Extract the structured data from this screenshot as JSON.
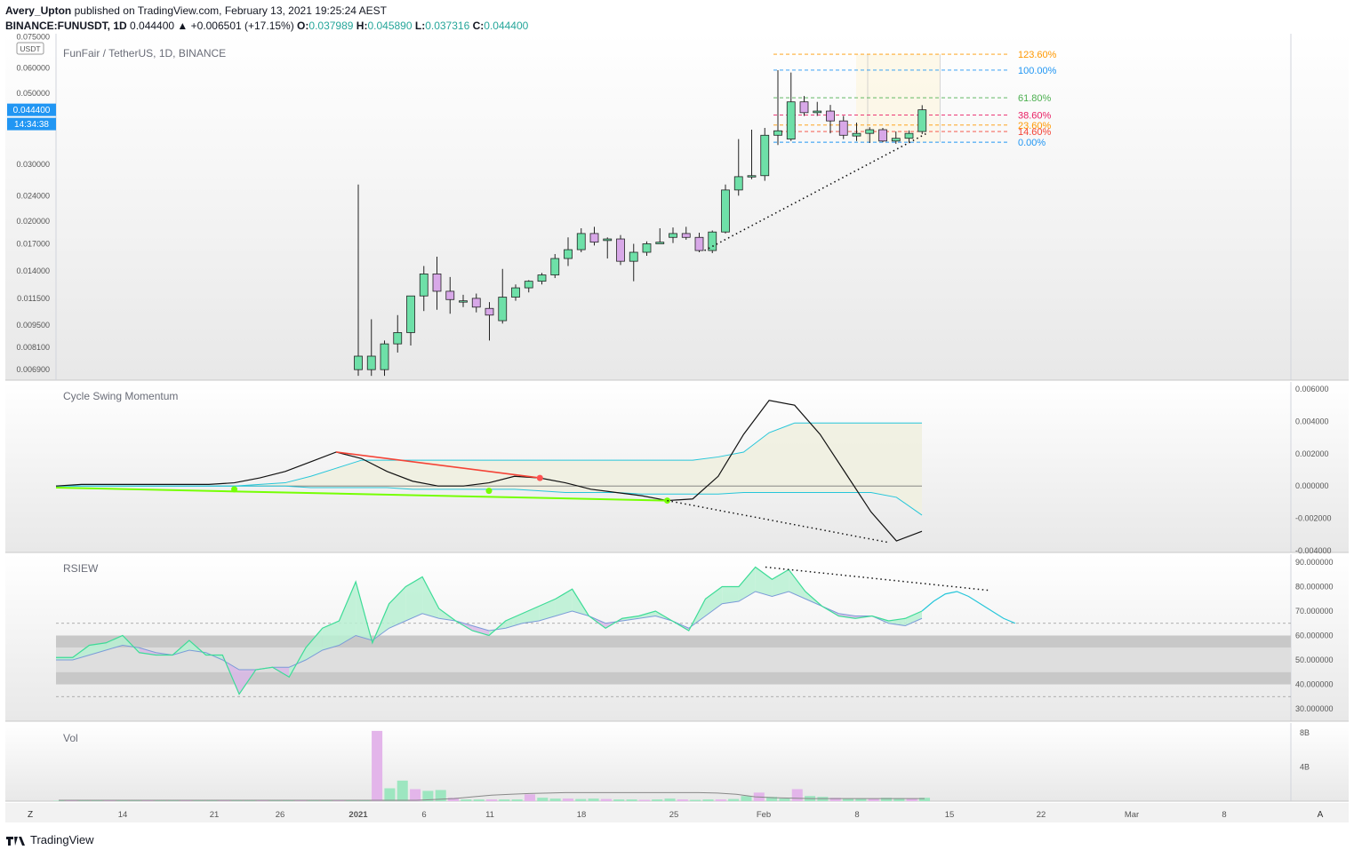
{
  "header": {
    "publisher": "Avery_Upton",
    "published_text": "published on TradingView.com, February 13, 2021 19:25:24 AEST",
    "symbol": "BINANCE:FUNUSDT, 1D",
    "change": "0.044400 ▲ +0.006501 (+17.15%)",
    "o_label": "O:",
    "o_val": "0.037989",
    "h_label": "H:",
    "h_val": "0.045890",
    "l_label": "L:",
    "l_val": "0.037316",
    "c_label": "C:",
    "c_val": "0.044400"
  },
  "footer": {
    "brand": "TradingView"
  },
  "colors": {
    "up": "#6ee0a8",
    "down": "#d8a8e8",
    "accent": "#2962ff"
  },
  "chart_data": [
    {
      "type": "candlestick",
      "title": "FunFair / TetherUS, 1D, BINANCE",
      "currency_label": "USDT",
      "y_ticks": [
        "0.075000",
        "0.060000",
        "0.050000",
        "0.030000",
        "0.024000",
        "0.020000",
        "0.017000",
        "0.014000",
        "0.011500",
        "0.009500",
        "0.008100",
        "0.006900"
      ],
      "price_badge": "0.044400",
      "countdown_badge": "14:34:38",
      "candles": [
        {
          "o": 0.0069,
          "h": 0.026,
          "l": 0.0066,
          "c": 0.0076
        },
        {
          "o": 0.0069,
          "h": 0.0099,
          "l": 0.0066,
          "c": 0.0076
        },
        {
          "o": 0.0069,
          "h": 0.0085,
          "l": 0.0066,
          "c": 0.0083
        },
        {
          "o": 0.0083,
          "h": 0.0102,
          "l": 0.0078,
          "c": 0.009
        },
        {
          "o": 0.009,
          "h": 0.0112,
          "l": 0.0082,
          "c": 0.0117
        },
        {
          "o": 0.0117,
          "h": 0.0145,
          "l": 0.0105,
          "c": 0.0137
        },
        {
          "o": 0.0137,
          "h": 0.0155,
          "l": 0.0106,
          "c": 0.0121
        },
        {
          "o": 0.0121,
          "h": 0.0134,
          "l": 0.0103,
          "c": 0.0114
        },
        {
          "o": 0.0113,
          "h": 0.0118,
          "l": 0.0108,
          "c": 0.0113
        },
        {
          "o": 0.0115,
          "h": 0.0119,
          "l": 0.0104,
          "c": 0.0108
        },
        {
          "o": 0.0107,
          "h": 0.0112,
          "l": 0.0085,
          "c": 0.0102
        },
        {
          "o": 0.0098,
          "h": 0.0142,
          "l": 0.0096,
          "c": 0.0116
        },
        {
          "o": 0.0116,
          "h": 0.0127,
          "l": 0.0113,
          "c": 0.0124
        },
        {
          "o": 0.0124,
          "h": 0.0131,
          "l": 0.012,
          "c": 0.013
        },
        {
          "o": 0.013,
          "h": 0.0138,
          "l": 0.0127,
          "c": 0.0136
        },
        {
          "o": 0.0136,
          "h": 0.0158,
          "l": 0.0133,
          "c": 0.0153
        },
        {
          "o": 0.0153,
          "h": 0.0178,
          "l": 0.0145,
          "c": 0.0163
        },
        {
          "o": 0.0163,
          "h": 0.019,
          "l": 0.016,
          "c": 0.0183
        },
        {
          "o": 0.0183,
          "h": 0.0192,
          "l": 0.0168,
          "c": 0.0172
        },
        {
          "o": 0.0174,
          "h": 0.0178,
          "l": 0.0153,
          "c": 0.0176
        },
        {
          "o": 0.0176,
          "h": 0.0181,
          "l": 0.0146,
          "c": 0.015
        },
        {
          "o": 0.015,
          "h": 0.017,
          "l": 0.013,
          "c": 0.016
        },
        {
          "o": 0.016,
          "h": 0.0173,
          "l": 0.0156,
          "c": 0.017
        },
        {
          "o": 0.017,
          "h": 0.019,
          "l": 0.017,
          "c": 0.0172
        },
        {
          "o": 0.0178,
          "h": 0.0191,
          "l": 0.0171,
          "c": 0.0183
        },
        {
          "o": 0.0183,
          "h": 0.0192,
          "l": 0.0175,
          "c": 0.0178
        },
        {
          "o": 0.0178,
          "h": 0.0184,
          "l": 0.016,
          "c": 0.0162
        },
        {
          "o": 0.0162,
          "h": 0.0187,
          "l": 0.0159,
          "c": 0.0185
        },
        {
          "o": 0.0185,
          "h": 0.026,
          "l": 0.0183,
          "c": 0.025
        },
        {
          "o": 0.025,
          "h": 0.036,
          "l": 0.024,
          "c": 0.0275
        },
        {
          "o": 0.0275,
          "h": 0.0385,
          "l": 0.027,
          "c": 0.0277
        },
        {
          "o": 0.0277,
          "h": 0.039,
          "l": 0.0267,
          "c": 0.037
        },
        {
          "o": 0.037,
          "h": 0.059,
          "l": 0.0345,
          "c": 0.0382
        },
        {
          "o": 0.036,
          "h": 0.058,
          "l": 0.0355,
          "c": 0.047
        },
        {
          "o": 0.047,
          "h": 0.049,
          "l": 0.0425,
          "c": 0.0435
        },
        {
          "o": 0.0435,
          "h": 0.047,
          "l": 0.0425,
          "c": 0.044
        },
        {
          "o": 0.044,
          "h": 0.046,
          "l": 0.0375,
          "c": 0.041
        },
        {
          "o": 0.041,
          "h": 0.0425,
          "l": 0.036,
          "c": 0.037
        },
        {
          "o": 0.0368,
          "h": 0.0405,
          "l": 0.0355,
          "c": 0.0375
        },
        {
          "o": 0.0375,
          "h": 0.0392,
          "l": 0.035,
          "c": 0.0385
        },
        {
          "o": 0.0385,
          "h": 0.039,
          "l": 0.0352,
          "c": 0.0355
        },
        {
          "o": 0.0355,
          "h": 0.038,
          "l": 0.0348,
          "c": 0.0362
        },
        {
          "o": 0.0362,
          "h": 0.0383,
          "l": 0.0352,
          "c": 0.0375
        },
        {
          "o": 0.038,
          "h": 0.0459,
          "l": 0.0373,
          "c": 0.0444
        }
      ],
      "fib_levels": [
        {
          "label": "123.60%",
          "value": 0.0661,
          "color": "#ff9800"
        },
        {
          "label": "100.00%",
          "value": 0.059,
          "color": "#2196f3"
        },
        {
          "label": "61.80%",
          "value": 0.0484,
          "color": "#4caf50"
        },
        {
          "label": "38.60%",
          "value": 0.0428,
          "color": "#e91e63"
        },
        {
          "label": "23.60%",
          "value": 0.0398,
          "color": "#ff9800"
        },
        {
          "label": "14.60%",
          "value": 0.038,
          "color": "#f44336"
        },
        {
          "label": "0.00%",
          "value": 0.0352,
          "color": "#2196f3"
        }
      ]
    },
    {
      "type": "line",
      "title": "Cycle Swing Momentum",
      "y_ticks": [
        "0.006000",
        "0.004000",
        "0.002000",
        "0.000000",
        "-0.002000",
        "-0.004000"
      ],
      "ylim": [
        -0.004,
        0.006
      ],
      "momentum": [
        0,
        0.0001,
        0.0001,
        0.0001,
        0.0001,
        0.0001,
        0.0001,
        0.0002,
        0.0005,
        0.0009,
        0.0015,
        0.0021,
        0.0017,
        0.0009,
        0.0003,
        0,
        0,
        0.0002,
        0.0006,
        0.0005,
        0.0002,
        -0.0002,
        -0.0004,
        -0.0006,
        -0.0009,
        -0.0008,
        0.0006,
        0.0032,
        0.0053,
        0.005,
        0.0032,
        0.0008,
        -0.0016,
        -0.0034,
        -0.0028
      ],
      "signal": [
        0,
        0,
        0,
        0,
        0,
        0,
        0,
        0,
        0.0001,
        0.0002,
        0.0006,
        0.0011,
        0.0016,
        0.0016,
        0.0016,
        0.0016,
        0.0016,
        0.0016,
        0.0016,
        0.0016,
        0.0016,
        0.0016,
        0.0016,
        0.0016,
        0.0016,
        0.0016,
        0.0018,
        0.0021,
        0.0033,
        0.0039,
        0.0039,
        0.0039,
        0.0039,
        0.0039,
        0.0039
      ],
      "lower": [
        0,
        0,
        0,
        0,
        0,
        0,
        0,
        0,
        0,
        0,
        -0.0001,
        -0.0001,
        -0.0001,
        -0.0001,
        -0.0002,
        -0.0002,
        -0.0002,
        -0.0002,
        -0.0002,
        -0.0003,
        -0.0004,
        -0.0004,
        -0.0004,
        -0.0005,
        -0.0005,
        -0.0005,
        -0.0005,
        -0.0004,
        -0.0004,
        -0.0004,
        -0.0004,
        -0.0004,
        -0.0004,
        -0.0007,
        -0.0018
      ]
    },
    {
      "type": "line",
      "title": "RSIEW",
      "y_ticks": [
        "90.000000",
        "80.000000",
        "70.000000",
        "60.000000",
        "50.000000",
        "40.000000",
        "30.000000"
      ],
      "ylim": [
        30,
        90
      ],
      "rsi": [
        51,
        51,
        56,
        57,
        60,
        53,
        52,
        52,
        58,
        52,
        52,
        36,
        46,
        47,
        43,
        55,
        63,
        66,
        82,
        57,
        73,
        80,
        84,
        71,
        66,
        62,
        60,
        66,
        69,
        72,
        75,
        79,
        68,
        63,
        67,
        68,
        70,
        66,
        62,
        75,
        80,
        80,
        88,
        83,
        87,
        78,
        72,
        68,
        67,
        68,
        66,
        67,
        70
      ],
      "rsi_ma": [
        50,
        50,
        52,
        54,
        56,
        55,
        53,
        52,
        54,
        53,
        50,
        46,
        46,
        47,
        47,
        50,
        54,
        56,
        60,
        58,
        63,
        66,
        69,
        67,
        66,
        64,
        62,
        63,
        65,
        66,
        68,
        70,
        68,
        65,
        66,
        67,
        68,
        66,
        63,
        68,
        73,
        74,
        78,
        76,
        78,
        75,
        72,
        69,
        68,
        68,
        65,
        64,
        67
      ],
      "projection": [
        70,
        74,
        77,
        78,
        76,
        73,
        70,
        67,
        65
      ]
    },
    {
      "type": "bar",
      "title": "Vol",
      "y_ticks": [
        "8B",
        "4B"
      ],
      "ylim": [
        0,
        8.5
      ],
      "volume": [
        0.05,
        0.05,
        0.05,
        0.05,
        0.05,
        0.05,
        0.05,
        0.05,
        0.05,
        0.05,
        0.05,
        0.05,
        0.05,
        0.05,
        0.05,
        0.05,
        0.05,
        0.05,
        0.05,
        0.05,
        0.05,
        0.05,
        0.05,
        0.05,
        0.1,
        8.2,
        1.5,
        2.4,
        1.4,
        1.2,
        1.3,
        0.4,
        0.2,
        0.2,
        0.2,
        0.2,
        0.2,
        0.8,
        0.4,
        0.3,
        0.3,
        0.25,
        0.3,
        0.25,
        0.2,
        0.2,
        0.15,
        0.2,
        0.3,
        0.2,
        0.15,
        0.2,
        0.2,
        0.25,
        0.6,
        1.0,
        0.5,
        0.3,
        1.4,
        0.6,
        0.5,
        0.4,
        0.3,
        0.3,
        0.3,
        0.4,
        0.35,
        0.35,
        0.4
      ],
      "vol_ma": [
        0.1,
        0.1,
        0.1,
        0.1,
        0.1,
        0.1,
        0.1,
        0.1,
        0.1,
        0.1,
        0.1,
        0.1,
        0.1,
        0.1,
        0.1,
        0.1,
        0.1,
        0.1,
        0.1,
        0.1,
        0.2,
        0.3,
        0.5,
        0.7,
        0.8,
        0.9,
        0.95,
        1.0,
        1.0,
        1.0,
        1.0,
        1.0,
        1.0,
        1.0,
        1.0,
        0.95,
        0.8,
        0.5,
        0.4,
        0.35,
        0.3,
        0.3,
        0.3,
        0.3,
        0.3,
        0.3,
        0.3
      ]
    }
  ],
  "x_axis": {
    "ticks": [
      "14",
      "21",
      "26",
      "2021",
      "6",
      "11",
      "18",
      "25",
      "Feb",
      "8",
      "15",
      "22",
      "Mar",
      "8"
    ],
    "left_button": "Z",
    "right_button": "A"
  }
}
